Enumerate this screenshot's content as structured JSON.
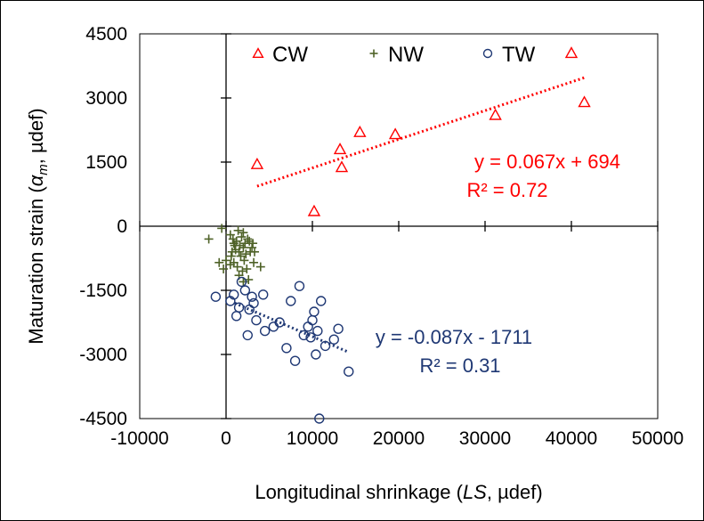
{
  "chart_data": {
    "type": "scatter",
    "title": "",
    "xlabel_parts": [
      "Longitudinal shrinkage (",
      "LS",
      ", µdef)"
    ],
    "ylabel_parts": [
      "Maturation strain (",
      "α",
      "m",
      ", µdef)"
    ],
    "xlim": [
      -10000,
      50000
    ],
    "ylim": [
      -4500,
      4500
    ],
    "x_ticks": [
      -10000,
      0,
      10000,
      20000,
      30000,
      40000,
      50000
    ],
    "y_ticks": [
      -4500,
      -3000,
      -1500,
      0,
      1500,
      3000,
      4500
    ],
    "x_tick_labels": [
      "-10000",
      "0",
      "10000",
      "20000",
      "30000",
      "40000",
      "50000"
    ],
    "y_tick_labels": [
      "-4500",
      "-3000",
      "-1500",
      "0",
      "1500",
      "3000",
      "4500"
    ],
    "grid": false,
    "legend_placement": "top",
    "series": [
      {
        "name": "CW",
        "marker": "triangle-open",
        "color": "#ff0000",
        "points": [
          [
            3600,
            1450
          ],
          [
            10200,
            350
          ],
          [
            13200,
            1800
          ],
          [
            13400,
            1380
          ],
          [
            15500,
            2200
          ],
          [
            19600,
            2150
          ],
          [
            31200,
            2600
          ],
          [
            40000,
            4050
          ],
          [
            41500,
            2900
          ]
        ],
        "trendline": {
          "x_range": [
            3600,
            41500
          ],
          "slope": 0.067,
          "intercept": 694
        },
        "equation": "y = 0.067x + 694",
        "r2": "R² = 0.72"
      },
      {
        "name": "NW",
        "marker": "plus",
        "color": "#4f6228",
        "points": [
          [
            -2000,
            -300
          ],
          [
            -500,
            -50
          ],
          [
            -800,
            -850
          ],
          [
            -300,
            -1000
          ],
          [
            0,
            -800
          ],
          [
            500,
            -200
          ],
          [
            800,
            -300
          ],
          [
            1000,
            -450
          ],
          [
            1200,
            -350
          ],
          [
            1500,
            -600
          ],
          [
            1800,
            -250
          ],
          [
            2000,
            -500
          ],
          [
            2200,
            -400
          ],
          [
            2500,
            -300
          ],
          [
            2800,
            -600
          ],
          [
            3000,
            -500
          ],
          [
            600,
            -700
          ],
          [
            900,
            -850
          ],
          [
            1300,
            -950
          ],
          [
            1700,
            -700
          ],
          [
            2100,
            -800
          ],
          [
            2400,
            -1000
          ],
          [
            3200,
            -850
          ],
          [
            4000,
            -950
          ],
          [
            1500,
            -1150
          ],
          [
            2000,
            -1300
          ],
          [
            2600,
            -1250
          ],
          [
            3300,
            -600
          ],
          [
            1100,
            -550
          ],
          [
            1600,
            -450
          ],
          [
            2300,
            -650
          ],
          [
            900,
            -400
          ],
          [
            1900,
            -1050
          ],
          [
            700,
            -600
          ],
          [
            1400,
            -100
          ],
          [
            2700,
            -350
          ],
          [
            3100,
            -400
          ],
          [
            500,
            -900
          ],
          [
            2000,
            -150
          ]
        ],
        "trendline": null,
        "equation": "",
        "r2": ""
      },
      {
        "name": "TW",
        "marker": "circle-open",
        "color": "#1f3874",
        "points": [
          [
            -1200,
            -1650
          ],
          [
            500,
            -1750
          ],
          [
            900,
            -1600
          ],
          [
            1200,
            -2100
          ],
          [
            1500,
            -1900
          ],
          [
            1800,
            -1300
          ],
          [
            2200,
            -1500
          ],
          [
            2500,
            -2550
          ],
          [
            2700,
            -1950
          ],
          [
            3000,
            -1650
          ],
          [
            3200,
            -1800
          ],
          [
            3500,
            -2200
          ],
          [
            4300,
            -1600
          ],
          [
            4500,
            -2450
          ],
          [
            5500,
            -2350
          ],
          [
            6200,
            -2250
          ],
          [
            7000,
            -2850
          ],
          [
            7500,
            -1750
          ],
          [
            8000,
            -3150
          ],
          [
            8500,
            -1400
          ],
          [
            9000,
            -2550
          ],
          [
            9500,
            -2350
          ],
          [
            9800,
            -2600
          ],
          [
            10000,
            -2200
          ],
          [
            10200,
            -2000
          ],
          [
            10400,
            -3000
          ],
          [
            10600,
            -2450
          ],
          [
            10800,
            -4500
          ],
          [
            11000,
            -1750
          ],
          [
            11500,
            -2800
          ],
          [
            12500,
            -2650
          ],
          [
            13000,
            -2400
          ],
          [
            14200,
            -3400
          ]
        ],
        "trendline": {
          "x_range": [
            1000,
            14200
          ],
          "slope": -0.087,
          "intercept": -1711
        },
        "equation": "y = -0.087x - 1711",
        "r2": "R² = 0.31"
      }
    ]
  }
}
